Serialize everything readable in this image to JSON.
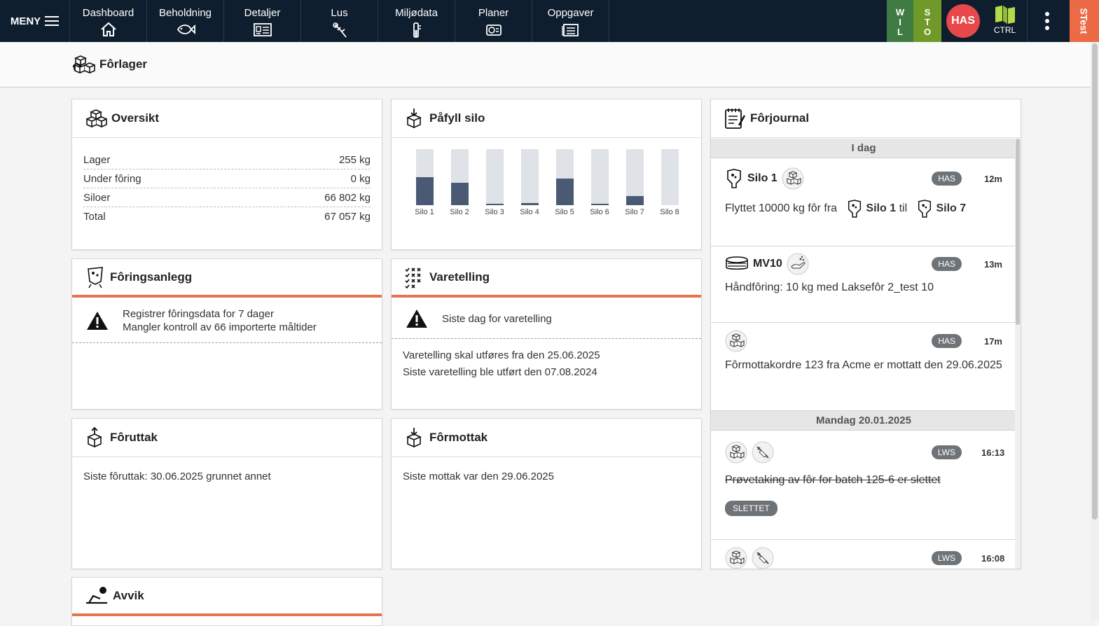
{
  "topbar": {
    "menu_label": "MENY",
    "tabs": [
      {
        "label": "Dashboard",
        "icon": "home-icon"
      },
      {
        "label": "Beholdning",
        "icon": "fish-icon"
      },
      {
        "label": "Detaljer",
        "icon": "details-card-icon"
      },
      {
        "label": "Lus",
        "icon": "lice-icon"
      },
      {
        "label": "Miljødata",
        "icon": "thermometer-icon"
      },
      {
        "label": "Planer",
        "icon": "plans-icon"
      },
      {
        "label": "Oppgaver",
        "icon": "tasks-icon"
      }
    ],
    "wil_letters": [
      "W",
      "I",
      "L"
    ],
    "sto_letters": [
      "S",
      "T",
      "O"
    ],
    "avatar": "HAS",
    "ctrl_label": "CTRL",
    "env_label": "STest",
    "colors": {
      "bar": "#0f1e2e",
      "wil": "#3f7b43",
      "sto": "#6f9a2a",
      "avatar": "#e8484a",
      "env": "#ec6a45"
    }
  },
  "page": {
    "title": "Fôrlager"
  },
  "oversikt": {
    "title": "Oversikt",
    "rows": [
      {
        "label": "Lager",
        "value": "255 kg"
      },
      {
        "label": "Under fôring",
        "value": "0 kg"
      },
      {
        "label": "Siloer",
        "value": "66 802 kg"
      },
      {
        "label": "Total",
        "value": "67 057 kg"
      }
    ]
  },
  "pafyll": {
    "title": "Påfyll silo",
    "silos": [
      {
        "label": "Silo 1",
        "fill": 0.5
      },
      {
        "label": "Silo 2",
        "fill": 0.4
      },
      {
        "label": "Silo 3",
        "fill": 0.03
      },
      {
        "label": "Silo 4",
        "fill": 0.04
      },
      {
        "label": "Silo 5",
        "fill": 0.47
      },
      {
        "label": "Silo 6",
        "fill": 0.02
      },
      {
        "label": "Silo 7",
        "fill": 0.16
      },
      {
        "label": "Silo 8",
        "fill": 0.0
      }
    ]
  },
  "foringsanlegg": {
    "title": "Fôringsanlegg",
    "warnings": [
      "Registrer fôringsdata for 7 dager",
      "Mangler kontroll av 66 importerte måltider"
    ]
  },
  "varetelling": {
    "title": "Varetelling",
    "warning": "Siste dag for varetelling",
    "lines": [
      "Varetelling skal utføres fra den 25.06.2025",
      "Siste varetelling ble utført den 07.08.2024"
    ]
  },
  "foruttak": {
    "title": "Fôruttak",
    "text": "Siste fôruttak: 30.06.2025 grunnet annet"
  },
  "formottak": {
    "title": "Fôrmottak",
    "text": "Siste mottak var den 29.06.2025"
  },
  "avvik": {
    "title": "Avvik"
  },
  "journal": {
    "title": "Fôrjournal",
    "day1": "I dag",
    "day2": "Mandag 20.01.2025",
    "e1": {
      "title": "Silo 1",
      "badge": "HAS",
      "time": "12m",
      "text": "Flyttet 10000 kg fôr fra",
      "from": "Silo 1",
      "mid": "til",
      "to": "Silo 7"
    },
    "e2": {
      "title": "MV10",
      "badge": "HAS",
      "time": "13m",
      "text": "Håndfôring: 10 kg med Laksefôr 2_test 10"
    },
    "e3": {
      "badge": "HAS",
      "time": "17m",
      "text": "Fôrmottakordre 123 fra Acme er mottatt den 29.06.2025"
    },
    "e4": {
      "badge": "LWS",
      "time": "16:13",
      "text": "Prøvetaking av fôr for batch 125-6 er slettet",
      "deleted": "SLETTET"
    },
    "e5": {
      "badge": "LWS",
      "time": "16:08"
    }
  }
}
